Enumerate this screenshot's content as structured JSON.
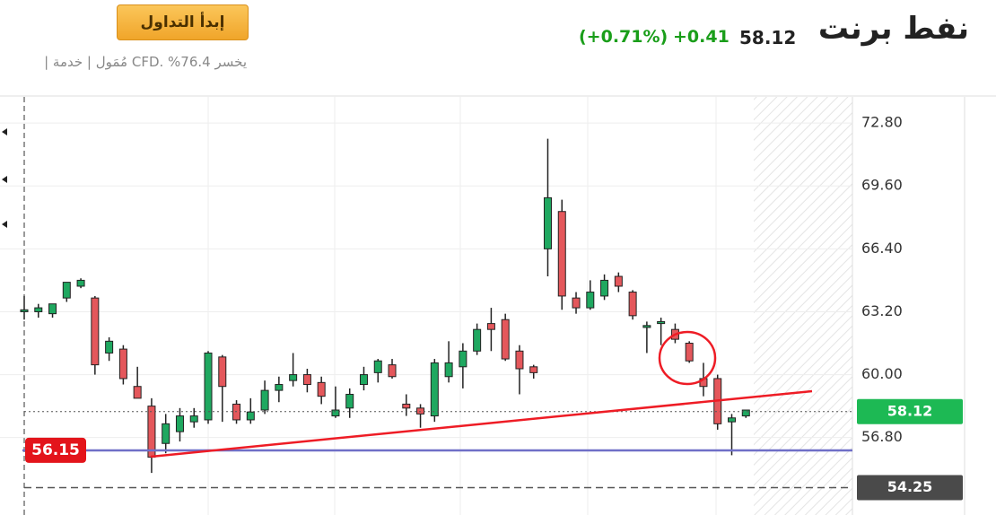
{
  "header": {
    "title": "نفط برنت",
    "price": "58.12",
    "change": "+0.41",
    "change_percent": "(+0.71%)",
    "button": "إبدأ التداول",
    "disclaimer": "| مُمَول | خدمة CFD. %76.4 يخسر"
  },
  "chart_data": {
    "type": "candlestick",
    "ylim": [
      52.86,
      74.13
    ],
    "yticks": [
      {
        "value": 56.8,
        "label": "56.80"
      },
      {
        "value": 60.0,
        "label": "60.00"
      },
      {
        "value": 63.2,
        "label": "63.20"
      },
      {
        "value": 66.4,
        "label": "66.40"
      },
      {
        "value": 69.6,
        "label": "69.60"
      },
      {
        "value": 72.8,
        "label": "72.80"
      }
    ],
    "grid": true,
    "up_color": "#1fa860",
    "down_color": "#e4575b",
    "open": [
      63.2,
      63.2,
      63.1,
      63.9,
      64.5,
      63.9,
      61.1,
      61.3,
      59.4,
      58.4,
      56.5,
      57.1,
      57.6,
      57.7,
      60.9,
      58.5,
      57.7,
      58.2,
      59.2,
      59.7,
      60.0,
      59.6,
      57.9,
      58.3,
      59.5,
      60.1,
      60.5,
      58.5,
      58.3,
      57.9,
      59.9,
      60.4,
      61.2,
      62.6,
      62.8,
      61.2,
      60.4,
      66.4,
      68.3,
      63.9,
      63.4,
      64.0,
      65.0,
      64.2,
      62.4,
      62.6,
      62.3,
      61.6,
      59.8,
      59.8,
      57.6,
      57.9
    ],
    "high": [
      64.0,
      63.6,
      63.6,
      64.6,
      64.9,
      64.0,
      61.9,
      61.5,
      60.4,
      58.8,
      58.0,
      58.3,
      58.3,
      61.2,
      61.0,
      58.7,
      58.8,
      59.7,
      59.9,
      61.1,
      60.3,
      59.9,
      59.4,
      59.3,
      60.4,
      60.8,
      60.8,
      59.0,
      58.5,
      60.8,
      61.7,
      61.6,
      62.6,
      63.4,
      63.1,
      61.5,
      60.5,
      72.0,
      68.9,
      64.2,
      64.8,
      65.1,
      65.2,
      64.3,
      62.7,
      62.9,
      62.6,
      61.7,
      60.6,
      60.0,
      58.0,
      58.2
    ],
    "low": [
      62.8,
      62.9,
      62.9,
      63.7,
      64.4,
      60.0,
      60.7,
      59.5,
      58.8,
      55.0,
      56.0,
      56.6,
      57.3,
      57.5,
      57.6,
      57.5,
      57.5,
      58.0,
      58.6,
      59.4,
      59.1,
      58.5,
      57.8,
      57.8,
      59.2,
      59.6,
      59.8,
      57.9,
      57.3,
      57.6,
      59.6,
      59.3,
      61.0,
      61.2,
      60.7,
      59.0,
      59.8,
      65.0,
      63.3,
      63.1,
      63.3,
      63.8,
      64.2,
      62.8,
      61.1,
      61.5,
      61.6,
      60.6,
      58.9,
      57.2,
      55.9,
      57.8
    ],
    "close": [
      63.3,
      63.4,
      63.6,
      64.7,
      64.8,
      60.5,
      61.7,
      59.8,
      58.8,
      55.8,
      57.5,
      57.9,
      57.9,
      61.1,
      59.4,
      57.7,
      58.1,
      59.2,
      59.5,
      60.0,
      59.5,
      58.9,
      58.2,
      59.0,
      60.0,
      60.7,
      59.9,
      58.3,
      58.0,
      60.6,
      60.6,
      61.2,
      62.3,
      62.3,
      60.8,
      60.3,
      60.1,
      69.0,
      64.0,
      63.4,
      64.2,
      64.8,
      64.5,
      63.0,
      62.5,
      62.7,
      61.8,
      60.7,
      59.4,
      57.5,
      57.8,
      58.2
    ],
    "price_labels": [
      {
        "value": 58.12,
        "color": "#1db954",
        "side": "right",
        "line": "dotted"
      },
      {
        "value": 54.25,
        "color": "#4a4a4a",
        "side": "right",
        "line": "dashed"
      },
      {
        "value": 56.15,
        "color": "#e3141b",
        "side": "left",
        "line": "none"
      }
    ]
  }
}
